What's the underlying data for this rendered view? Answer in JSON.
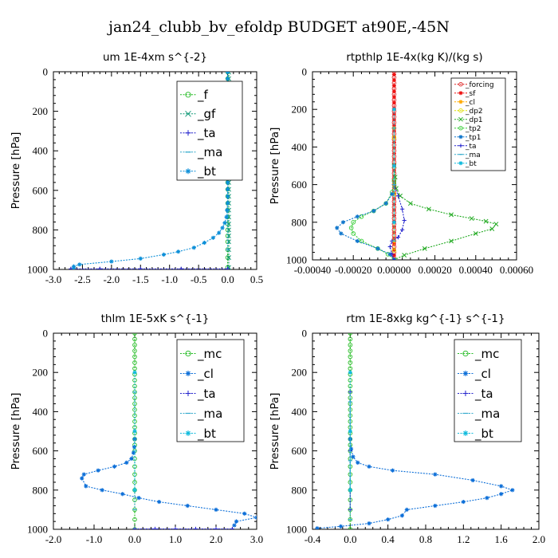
{
  "figure_title": "jan24_clubb_bv_efoldp  BUDGET at90E,-45N",
  "chart_data": [
    {
      "type": "line",
      "title": "um  1E-4xm s^{-2}",
      "ylabel": "Pressure [hPa]",
      "xlabel": "",
      "xlim": [
        -3.0,
        0.5
      ],
      "ylim": [
        1000,
        0
      ],
      "xticks": [
        "-3.0",
        "-2.5",
        "-2.0",
        "-1.5",
        "-1.0",
        "-0.5",
        "0.0",
        "0.5"
      ],
      "xtick_values": [
        -3.0,
        -2.5,
        -2.0,
        -1.5,
        -1.0,
        -0.5,
        0.0,
        0.5
      ],
      "yticks": [
        "0",
        "200",
        "400",
        "600",
        "800",
        "1000"
      ],
      "ytick_values": [
        0,
        200,
        400,
        600,
        800,
        1000
      ],
      "legend_position": "top-right",
      "legend_size": "large",
      "series": [
        {
          "name": "_f",
          "color": "#22bb22",
          "marker": "circle",
          "x": [
            0,
            0,
            0,
            0,
            0,
            0,
            0,
            0,
            0,
            0,
            0,
            0,
            0,
            0,
            0,
            0,
            0,
            0,
            0,
            0,
            0,
            0,
            0,
            0,
            0,
            0,
            0,
            0,
            0
          ],
          "y": [
            2,
            35,
            70,
            105,
            140,
            175,
            210,
            245,
            280,
            315,
            350,
            385,
            420,
            455,
            490,
            525,
            560,
            595,
            630,
            665,
            700,
            735,
            770,
            800,
            830,
            860,
            900,
            940,
            990
          ]
        },
        {
          "name": "_gf",
          "color": "#119977",
          "marker": "x",
          "x": [
            0.02,
            0.02,
            0.02,
            0.02,
            0.02,
            0.02,
            0.02,
            0.02,
            0.02,
            0.02,
            0.02,
            0.02,
            0.02,
            0.02,
            0.02,
            0.02,
            0.02,
            0.02,
            0.02,
            0.02,
            0.02,
            0.02,
            0.02,
            0.02,
            0.02,
            0.02,
            0.02,
            0.02,
            0.02
          ],
          "y": [
            2,
            35,
            70,
            105,
            140,
            175,
            210,
            245,
            280,
            315,
            350,
            385,
            420,
            455,
            490,
            525,
            560,
            595,
            630,
            665,
            700,
            735,
            770,
            800,
            830,
            860,
            900,
            940,
            990
          ]
        },
        {
          "name": "_ta",
          "color": "#2222cc",
          "marker": "plus",
          "x": [
            -2.7,
            -2.2,
            -1.5,
            -0.8,
            0
          ],
          "y": [
            997,
            997,
            997,
            997,
            997
          ]
        },
        {
          "name": "_ma",
          "color": "#33aacc",
          "marker": "dash",
          "x": [
            0,
            0,
            0,
            0,
            0
          ],
          "y": [
            100,
            300,
            500,
            700,
            900
          ]
        },
        {
          "name": "_bt",
          "color": "#0d8fd8",
          "marker": "star",
          "x": [
            0,
            0,
            0,
            0,
            0,
            0,
            0,
            0,
            0,
            0,
            0,
            0,
            0,
            0,
            0,
            0,
            0,
            0,
            0,
            0,
            -0.01,
            -0.02,
            -0.05,
            -0.09,
            -0.15,
            -0.25,
            -0.4,
            -0.58,
            -0.85,
            -1.1,
            -1.5,
            -2.0,
            -2.55,
            -2.65,
            -2.65
          ],
          "y": [
            2,
            35,
            70,
            105,
            140,
            175,
            210,
            245,
            280,
            315,
            350,
            385,
            420,
            455,
            490,
            525,
            560,
            595,
            630,
            665,
            700,
            735,
            765,
            790,
            815,
            840,
            865,
            890,
            910,
            925,
            945,
            960,
            975,
            985,
            995
          ]
        }
      ]
    },
    {
      "type": "line",
      "title": "rtpthlp  1E-4x(kg K)/(kg s)",
      "ylabel": "Pressure [hPa]",
      "xlabel": "",
      "xlim": [
        -0.0004,
        0.0006
      ],
      "ylim": [
        1000,
        0
      ],
      "xticks": [
        "-0.00040",
        "-0.00020",
        "0.00000",
        "0.00020",
        "0.00040",
        "0.00060"
      ],
      "xtick_values": [
        -0.0004,
        -0.0002,
        0.0,
        0.0002,
        0.0004,
        0.0006
      ],
      "yticks": [
        "0",
        "200",
        "400",
        "600",
        "800",
        "1000"
      ],
      "ytick_values": [
        0,
        200,
        400,
        600,
        800,
        1000
      ],
      "legend_position": "top-right",
      "legend_size": "small",
      "series": [
        {
          "name": "_forcing",
          "color": "#dd2222",
          "marker": "circle",
          "x": [
            0,
            0,
            0,
            0,
            0,
            0,
            0,
            0,
            0,
            0,
            0,
            0,
            0,
            0,
            0,
            0,
            0,
            0,
            0,
            0,
            0,
            0,
            0,
            0,
            0,
            0,
            0,
            0,
            0,
            0,
            0,
            0,
            0,
            0
          ],
          "y": [
            0,
            30,
            60,
            90,
            120,
            150,
            180,
            210,
            240,
            270,
            300,
            330,
            360,
            390,
            420,
            450,
            480,
            510,
            540,
            570,
            600,
            630,
            660,
            690,
            720,
            750,
            780,
            810,
            840,
            870,
            900,
            930,
            960,
            990
          ]
        },
        {
          "name": "_sf",
          "color": "#ee1111",
          "marker": "star",
          "x": [
            0,
            0,
            0,
            0,
            0,
            0,
            0,
            0,
            0,
            0,
            0,
            0,
            0,
            0,
            0,
            0,
            0,
            0,
            0,
            0,
            0,
            0,
            0,
            0,
            0,
            0,
            0,
            0,
            0,
            0,
            0,
            0,
            0,
            0
          ],
          "y": [
            15,
            45,
            75,
            105,
            135,
            165,
            195,
            225,
            255,
            285,
            315,
            345,
            375,
            405,
            435,
            465,
            495,
            525,
            555,
            585,
            615,
            645,
            675,
            705,
            735,
            765,
            795,
            825,
            855,
            885,
            915,
            945,
            975,
            998
          ]
        },
        {
          "name": "_cl",
          "color": "#ffaa00",
          "marker": "star",
          "x": [
            0,
            0,
            0
          ],
          "y": [
            300,
            600,
            900
          ]
        },
        {
          "name": "_dp2",
          "color": "#dddd00",
          "marker": "circle",
          "x": [
            0,
            0,
            0
          ],
          "y": [
            350,
            650,
            950
          ]
        },
        {
          "name": "_dp1",
          "color": "#22aa22",
          "marker": "x",
          "x": [
            0,
            5e-06,
            1e-05,
            3e-05,
            8e-05,
            0.00017,
            0.00028,
            0.00038,
            0.00045,
            0.0005,
            0.00048,
            0.0004,
            0.00028,
            0.00015,
            5e-05,
            0
          ],
          "y": [
            500,
            560,
            620,
            660,
            700,
            730,
            760,
            780,
            795,
            810,
            835,
            860,
            900,
            940,
            975,
            1000
          ]
        },
        {
          "name": "_tp2",
          "color": "#33cc33",
          "marker": "circle",
          "x": [
            0,
            -1e-05,
            -4e-05,
            -0.0001,
            -0.00016,
            -0.0002,
            -0.00021,
            -0.0002,
            -0.00016,
            -8e-05,
            -3e-05,
            0
          ],
          "y": [
            580,
            640,
            700,
            740,
            770,
            800,
            830,
            860,
            900,
            940,
            970,
            1000
          ]
        },
        {
          "name": "_tp1",
          "color": "#1177cc",
          "marker": "star",
          "x": [
            -1e-05,
            -4e-05,
            -0.0001,
            -0.00018,
            -0.00025,
            -0.00028,
            -0.00026,
            -0.00018,
            -8e-05,
            -2e-05,
            0
          ],
          "y": [
            650,
            700,
            740,
            770,
            800,
            830,
            860,
            900,
            940,
            970,
            1000
          ]
        },
        {
          "name": "_ta",
          "color": "#2222cc",
          "marker": "plus",
          "x": [
            0,
            2e-05,
            4e-05,
            5e-05,
            4e-05,
            2e-05,
            -1e-05,
            -2e-05,
            -1e-05,
            0
          ],
          "y": [
            600,
            660,
            730,
            790,
            840,
            880,
            900,
            930,
            970,
            1000
          ]
        },
        {
          "name": "_ma",
          "color": "#33aacc",
          "marker": "dash",
          "x": [
            0,
            0,
            0
          ],
          "y": [
            300,
            600,
            900
          ]
        },
        {
          "name": "_bt",
          "color": "#11bbdd",
          "marker": "star",
          "x": [
            0,
            0,
            0
          ],
          "y": [
            200,
            500,
            800
          ]
        }
      ]
    },
    {
      "type": "line",
      "title": "thlm  1E-5xK s^{-1}",
      "ylabel": "Pressure [hPa]",
      "xlabel": "",
      "xlim": [
        -2.0,
        3.0
      ],
      "ylim": [
        1000,
        0
      ],
      "xticks": [
        "-2.0",
        "-1.0",
        "0.0",
        "1.0",
        "2.0",
        "3.0"
      ],
      "xtick_values": [
        -2.0,
        -1.0,
        0.0,
        1.0,
        2.0,
        3.0
      ],
      "yticks": [
        "0",
        "200",
        "400",
        "600",
        "800",
        "1000"
      ],
      "ytick_values": [
        0,
        200,
        400,
        600,
        800,
        1000
      ],
      "legend_position": "top-right",
      "legend_size": "large",
      "series": [
        {
          "name": "_mc",
          "color": "#22bb22",
          "marker": "circle",
          "x": [
            0,
            0,
            0,
            0,
            0,
            0,
            0,
            0,
            0,
            0,
            0,
            0,
            0,
            0,
            0,
            0,
            0,
            0,
            0,
            0,
            0,
            0,
            0,
            0,
            0,
            0,
            0,
            0,
            0,
            0
          ],
          "y": [
            0,
            30,
            60,
            90,
            120,
            150,
            180,
            210,
            240,
            270,
            300,
            330,
            360,
            390,
            420,
            450,
            480,
            510,
            540,
            570,
            600,
            640,
            680,
            720,
            760,
            800,
            850,
            900,
            950,
            1000
          ]
        },
        {
          "name": "_cl",
          "color": "#0d6fd8",
          "marker": "star",
          "x": [
            0,
            -0.01,
            -0.03,
            -0.08,
            -0.2,
            -0.5,
            -0.9,
            -1.25,
            -1.3,
            -1.2,
            -0.8,
            -0.3,
            0.1,
            0.6,
            1.3,
            2.0,
            2.7,
            3.0,
            2.5,
            2.45
          ],
          "y": [
            540,
            580,
            610,
            640,
            660,
            680,
            700,
            720,
            740,
            780,
            800,
            820,
            840,
            860,
            880,
            900,
            920,
            940,
            960,
            980
          ]
        },
        {
          "name": "_ta",
          "color": "#2222cc",
          "marker": "plus",
          "x": [
            0,
            0.5,
            1.0,
            1.5,
            2.0,
            2.4
          ],
          "y": [
            998,
            998,
            998,
            998,
            998,
            998
          ]
        },
        {
          "name": "_ma",
          "color": "#33aacc",
          "marker": "dash",
          "x": [
            0,
            0,
            0
          ],
          "y": [
            300,
            600,
            900
          ]
        },
        {
          "name": "_bt",
          "color": "#11bbdd",
          "marker": "star",
          "x": [
            0,
            0,
            0
          ],
          "y": [
            200,
            500,
            800
          ]
        }
      ]
    },
    {
      "type": "line",
      "title": "rtm  1E-8xkg kg^{-1} s^{-1}",
      "ylabel": "Pressure [hPa]",
      "xlabel": "",
      "xlim": [
        -0.4,
        2.0
      ],
      "ylim": [
        1000,
        0
      ],
      "xticks": [
        "-0.4",
        "0.0",
        "0.4",
        "0.8",
        "1.2",
        "1.6",
        "2.0"
      ],
      "xtick_values": [
        -0.4,
        0.0,
        0.4,
        0.8,
        1.2,
        1.6,
        2.0
      ],
      "yticks": [
        "0",
        "200",
        "400",
        "600",
        "800",
        "1000"
      ],
      "ytick_values": [
        0,
        200,
        400,
        600,
        800,
        1000
      ],
      "legend_position": "top-right",
      "legend_size": "large",
      "series": [
        {
          "name": "_mc",
          "color": "#22bb22",
          "marker": "circle",
          "x": [
            0,
            0,
            0,
            0,
            0,
            0,
            0,
            0,
            0,
            0,
            0,
            0,
            0,
            0,
            0,
            0,
            0,
            0,
            0,
            0,
            0,
            0,
            0,
            0,
            0,
            0,
            0,
            0,
            0,
            0
          ],
          "y": [
            0,
            30,
            60,
            90,
            120,
            150,
            180,
            210,
            240,
            270,
            300,
            330,
            360,
            390,
            420,
            450,
            480,
            510,
            540,
            570,
            600,
            640,
            680,
            720,
            760,
            800,
            850,
            900,
            950,
            1000
          ]
        },
        {
          "name": "_cl",
          "color": "#0d6fd8",
          "marker": "star",
          "x": [
            0,
            0.01,
            0.03,
            0.08,
            0.2,
            0.45,
            0.9,
            1.3,
            1.6,
            1.72,
            1.6,
            1.45,
            1.2,
            0.9,
            0.6,
            0.55,
            0.4,
            0.2,
            -0.1,
            -0.35
          ],
          "y": [
            540,
            590,
            630,
            660,
            680,
            700,
            720,
            750,
            780,
            800,
            820,
            840,
            860,
            880,
            900,
            930,
            950,
            970,
            985,
            995
          ]
        },
        {
          "name": "_ta",
          "color": "#2222cc",
          "marker": "plus",
          "x": [
            0,
            0,
            0
          ],
          "y": [
            300,
            600,
            900
          ]
        },
        {
          "name": "_ma",
          "color": "#33aacc",
          "marker": "dash",
          "x": [
            0,
            0,
            0
          ],
          "y": [
            350,
            650,
            950
          ]
        },
        {
          "name": "_bt",
          "color": "#11bbdd",
          "marker": "star",
          "x": [
            0,
            0,
            0
          ],
          "y": [
            200,
            500,
            800
          ]
        }
      ]
    }
  ]
}
